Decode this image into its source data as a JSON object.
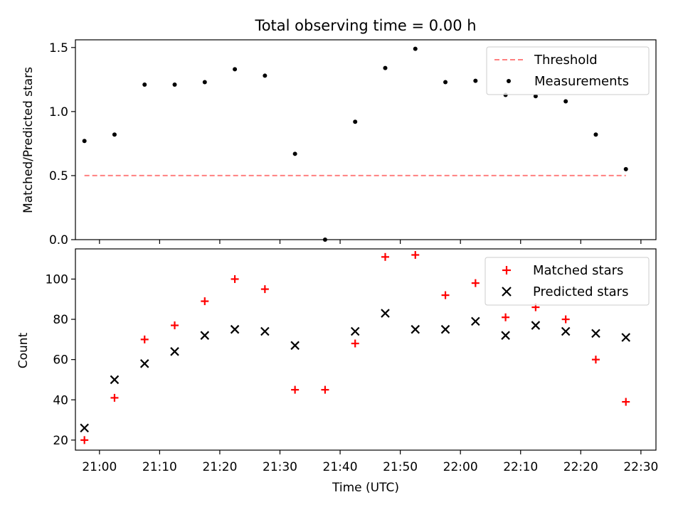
{
  "chart_data": [
    {
      "type": "scatter",
      "title": "Total observing time = 0.00 h",
      "xlabel": "",
      "ylabel": "Matched/Predicted stars",
      "xlim": [
        "20:56:00",
        "22:32:30"
      ],
      "ylim": [
        0,
        1.56
      ],
      "y_ticks": [
        "0.0",
        "0.5",
        "1.0",
        "1.5"
      ],
      "legend_position": "upper right",
      "series": [
        {
          "name": "Threshold",
          "style": "dashed line",
          "color": "#ff8080",
          "x": [
            "20:57:30",
            "22:27:30"
          ],
          "y": [
            0.5,
            0.5
          ]
        },
        {
          "name": "Measurements",
          "style": "dot",
          "color": "#000000",
          "x": [
            "20:57:30",
            "21:02:30",
            "21:07:30",
            "21:12:30",
            "21:17:30",
            "21:22:30",
            "21:27:30",
            "21:32:30",
            "21:37:30",
            "21:42:30",
            "21:47:30",
            "21:52:30",
            "21:57:30",
            "22:02:30",
            "22:07:30",
            "22:12:30",
            "22:17:30",
            "22:22:30",
            "22:27:30"
          ],
          "y": [
            0.77,
            0.82,
            1.21,
            1.21,
            1.23,
            1.33,
            1.28,
            0.67,
            0.0,
            0.92,
            1.34,
            1.49,
            1.23,
            1.24,
            1.13,
            1.12,
            1.08,
            0.82,
            0.55
          ]
        }
      ]
    },
    {
      "type": "scatter",
      "xlabel": "Time (UTC)",
      "ylabel": "Count",
      "xlim": [
        "20:56:00",
        "22:32:30"
      ],
      "ylim": [
        15,
        115
      ],
      "x_ticks": [
        "21:00",
        "21:10",
        "21:20",
        "21:30",
        "21:40",
        "21:50",
        "22:00",
        "22:10",
        "22:20",
        "22:30"
      ],
      "y_ticks": [
        "20",
        "40",
        "60",
        "80",
        "100"
      ],
      "legend_position": "upper right",
      "series": [
        {
          "name": "Matched stars",
          "marker": "+",
          "color": "#ff0000",
          "x": [
            "20:57:30",
            "21:02:30",
            "21:07:30",
            "21:12:30",
            "21:17:30",
            "21:22:30",
            "21:27:30",
            "21:32:30",
            "21:37:30",
            "21:42:30",
            "21:47:30",
            "21:52:30",
            "21:57:30",
            "22:02:30",
            "22:07:30",
            "22:12:30",
            "22:17:30",
            "22:22:30",
            "22:27:30"
          ],
          "y": [
            20,
            41,
            70,
            77,
            89,
            100,
            95,
            45,
            45,
            68,
            111,
            112,
            92,
            98,
            81,
            86,
            80,
            60,
            39
          ]
        },
        {
          "name": "Predicted stars",
          "marker": "x",
          "color": "#000000",
          "x": [
            "20:57:30",
            "21:02:30",
            "21:07:30",
            "21:12:30",
            "21:17:30",
            "21:22:30",
            "21:27:30",
            "21:32:30",
            "21:42:30",
            "21:47:30",
            "21:52:30",
            "21:57:30",
            "22:02:30",
            "22:07:30",
            "22:12:30",
            "22:17:30",
            "22:22:30",
            "22:27:30"
          ],
          "y": [
            26,
            50,
            58,
            64,
            72,
            75,
            74,
            67,
            74,
            83,
            75,
            75,
            79,
            72,
            77,
            74,
            73,
            71
          ]
        }
      ]
    }
  ]
}
